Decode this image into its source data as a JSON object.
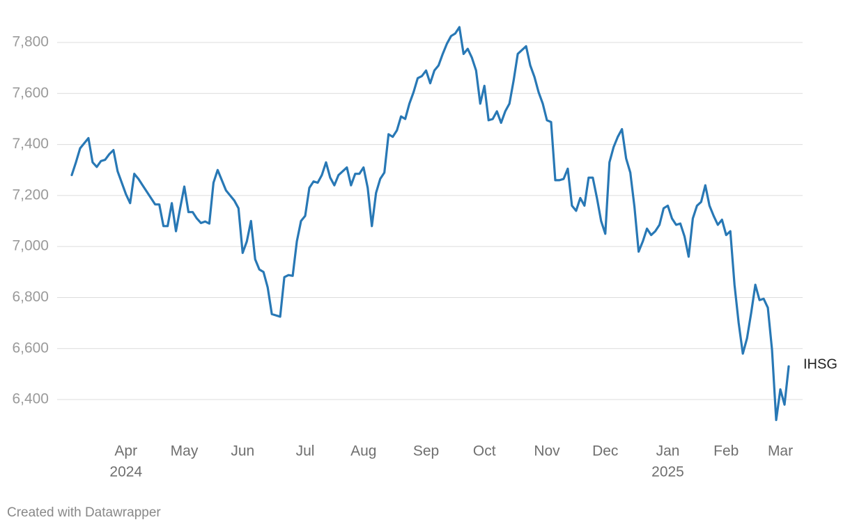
{
  "chart_data": {
    "type": "line",
    "series": [
      {
        "name": "IHSG",
        "color": "#2878b5",
        "values": [
          7280,
          7330,
          7385,
          7405,
          7425,
          7330,
          7312,
          7335,
          7340,
          7362,
          7378,
          7295,
          7250,
          7205,
          7170,
          7285,
          7265,
          7240,
          7215,
          7190,
          7165,
          7165,
          7080,
          7080,
          7170,
          7060,
          7150,
          7235,
          7135,
          7135,
          7110,
          7092,
          7098,
          7090,
          7250,
          7300,
          7260,
          7220,
          7200,
          7180,
          7150,
          6975,
          7020,
          7100,
          6950,
          6910,
          6900,
          6840,
          6735,
          6730,
          6725,
          6880,
          6888,
          6885,
          7020,
          7100,
          7120,
          7230,
          7255,
          7250,
          7280,
          7330,
          7270,
          7240,
          7280,
          7295,
          7310,
          7240,
          7285,
          7285,
          7310,
          7230,
          7080,
          7210,
          7265,
          7290,
          7440,
          7430,
          7455,
          7510,
          7500,
          7560,
          7605,
          7660,
          7668,
          7690,
          7640,
          7690,
          7710,
          7755,
          7795,
          7825,
          7835,
          7860,
          7755,
          7775,
          7740,
          7690,
          7560,
          7630,
          7495,
          7500,
          7530,
          7485,
          7530,
          7560,
          7650,
          7755,
          7770,
          7785,
          7710,
          7665,
          7605,
          7560,
          7495,
          7488,
          7260,
          7260,
          7265,
          7305,
          7160,
          7140,
          7190,
          7160,
          7270,
          7270,
          7190,
          7100,
          7050,
          7330,
          7390,
          7430,
          7460,
          7345,
          7290,
          7155,
          6980,
          7020,
          7070,
          7045,
          7060,
          7085,
          7150,
          7160,
          7110,
          7085,
          7090,
          7040,
          6960,
          7110,
          7160,
          7175,
          7240,
          7160,
          7120,
          7085,
          7105,
          7045,
          7060,
          6850,
          6700,
          6580,
          6640,
          6740,
          6850,
          6790,
          6795,
          6760,
          6595,
          6320,
          6440,
          6380,
          6530
        ]
      }
    ],
    "ylim": [
      6250,
      7920
    ],
    "yticks": [
      {
        "value": 6400,
        "label": "6,400"
      },
      {
        "value": 6600,
        "label": "6,600"
      },
      {
        "value": 6800,
        "label": "6,800"
      },
      {
        "value": 7000,
        "label": "7,000"
      },
      {
        "value": 7200,
        "label": "7,200"
      },
      {
        "value": 7400,
        "label": "7,400"
      },
      {
        "value": 7600,
        "label": "7,600"
      },
      {
        "value": 7800,
        "label": "7,800"
      }
    ],
    "xticks": [
      {
        "value": 13,
        "label": "Apr"
      },
      {
        "value": 27,
        "label": "May"
      },
      {
        "value": 41,
        "label": "Jun"
      },
      {
        "value": 56,
        "label": "Jul"
      },
      {
        "value": 70,
        "label": "Aug"
      },
      {
        "value": 85,
        "label": "Sep"
      },
      {
        "value": 99,
        "label": "Oct"
      },
      {
        "value": 114,
        "label": "Nov"
      },
      {
        "value": 128,
        "label": "Dec"
      },
      {
        "value": 143,
        "label": "Jan"
      },
      {
        "value": 157,
        "label": "Feb"
      },
      {
        "value": 170,
        "label": "Mar"
      }
    ],
    "xtick_years": [
      {
        "value": 13,
        "label": "2024"
      },
      {
        "value": 143,
        "label": "2025"
      }
    ],
    "grid": true,
    "credit": "Created with Datawrapper"
  }
}
